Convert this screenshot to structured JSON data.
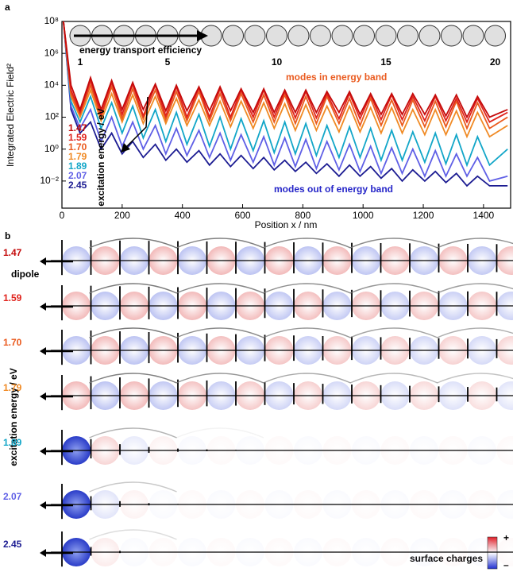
{
  "chart_data": {
    "type": "line",
    "panel_label": "a",
    "y_label": "Integrated Electric Field²",
    "x_label": "Position x / nm",
    "log_y": true,
    "xlim": [
      0,
      1490
    ],
    "ylim": [
      0.0002,
      100000000
    ],
    "xticks": [
      0,
      200,
      400,
      600,
      800,
      1000,
      1200,
      1400
    ],
    "yticks": [
      {
        "value": 0.01,
        "label": "10⁻²"
      },
      {
        "value": 1,
        "label": "10⁰"
      },
      {
        "value": 100,
        "label": "10²"
      },
      {
        "value": 10000,
        "label": "10⁴"
      },
      {
        "value": 1000000,
        "label": "10⁶"
      },
      {
        "value": 100000000,
        "label": "10⁸"
      }
    ],
    "legend_title": "excitation energy / eV",
    "annotations": {
      "transport": "energy transport efficiency",
      "in_band": "modes in energy band",
      "out_band": "modes out of energy band"
    },
    "particle_numbers": [
      1,
      5,
      10,
      15,
      20
    ],
    "x": [
      5,
      30,
      60,
      95,
      130,
      165,
      200,
      235,
      270,
      310,
      345,
      380,
      415,
      455,
      490,
      525,
      560,
      595,
      635,
      670,
      705,
      740,
      775,
      810,
      845,
      880,
      920,
      955,
      990,
      1025,
      1060,
      1095,
      1130,
      1165,
      1205,
      1240,
      1275,
      1310,
      1345,
      1380,
      1420,
      1480
    ],
    "series": [
      {
        "name": "1.47",
        "color": "#c40a0a",
        "values": [
          100000000,
          10000,
          300,
          30000,
          300,
          20000,
          300,
          15000,
          300,
          12000,
          250,
          10000,
          250,
          8000,
          250,
          8000,
          250,
          6000,
          200,
          6000,
          200,
          5000,
          200,
          5000,
          200,
          4000,
          200,
          4000,
          150,
          3000,
          150,
          3000,
          150,
          3000,
          150,
          2500,
          120,
          2500,
          100,
          2000,
          100,
          300
        ]
      },
      {
        "name": "1.59",
        "color": "#e0231c",
        "values": [
          100000000,
          5000,
          200,
          20000,
          150,
          15000,
          150,
          12000,
          120,
          10000,
          120,
          8000,
          100,
          7000,
          100,
          6000,
          100,
          5000,
          100,
          5000,
          100,
          4000,
          90,
          4000,
          90,
          3000,
          80,
          3000,
          80,
          2500,
          70,
          2500,
          70,
          2000,
          60,
          2000,
          60,
          1500,
          50,
          1500,
          50,
          200
        ]
      },
      {
        "name": "1.70",
        "color": "#ea5a1e",
        "values": [
          100000000,
          3000,
          150,
          10000,
          100,
          8000,
          80,
          6000,
          80,
          5000,
          70,
          4000,
          60,
          4000,
          60,
          3000,
          60,
          3000,
          50,
          2500,
          50,
          2500,
          40,
          2000,
          40,
          2000,
          40,
          1500,
          30,
          1500,
          30,
          1200,
          30,
          1200,
          25,
          1000,
          25,
          1000,
          20,
          800,
          20,
          100
        ]
      },
      {
        "name": "1.79",
        "color": "#f08a24",
        "values": [
          100000000,
          2000,
          100,
          5000,
          60,
          3000,
          50,
          2500,
          40,
          2000,
          40,
          1500,
          30,
          1200,
          30,
          1000,
          25,
          1000,
          20,
          800,
          20,
          700,
          15,
          600,
          15,
          500,
          12,
          500,
          12,
          400,
          10,
          400,
          10,
          300,
          8,
          300,
          8,
          250,
          6,
          200,
          6,
          30
        ]
      },
      {
        "name": "1.89",
        "color": "#12a6c8",
        "values": [
          100000000,
          1000,
          50,
          2000,
          20,
          800,
          10,
          500,
          5,
          300,
          3,
          200,
          2,
          150,
          1.5,
          100,
          1,
          80,
          0.8,
          60,
          0.6,
          50,
          0.5,
          40,
          0.4,
          30,
          0.3,
          25,
          0.3,
          20,
          0.2,
          15,
          0.2,
          12,
          0.15,
          10,
          0.12,
          8,
          0.1,
          6,
          0.1,
          1
        ]
      },
      {
        "name": "2.07",
        "color": "#5f5fe6",
        "values": [
          100000000,
          500,
          20,
          300,
          3,
          100,
          1.5,
          50,
          1,
          30,
          0.5,
          20,
          0.4,
          15,
          0.3,
          10,
          0.2,
          8,
          0.15,
          6,
          0.1,
          5,
          0.08,
          4,
          0.06,
          3,
          0.05,
          2,
          0.04,
          1.5,
          0.03,
          1.2,
          0.03,
          1,
          0.02,
          0.8,
          0.02,
          0.5,
          0.02,
          0.3,
          0.01,
          0.02
        ]
      },
      {
        "name": "2.45",
        "color": "#1c1c92",
        "values": [
          100000000,
          300,
          10,
          50,
          1,
          10,
          0.5,
          3,
          0.3,
          2,
          0.2,
          1,
          0.15,
          0.8,
          0.1,
          0.5,
          0.08,
          0.4,
          0.06,
          0.3,
          0.05,
          0.2,
          0.04,
          0.15,
          0.03,
          0.12,
          0.02,
          0.1,
          0.02,
          0.08,
          0.015,
          0.06,
          0.01,
          0.05,
          0.01,
          0.04,
          0.008,
          0.03,
          0.005,
          0.02,
          0.005,
          0.005
        ]
      }
    ]
  },
  "panel_b": {
    "label": "b",
    "dipole": "dipole",
    "axis_label": "excitation energy / eV",
    "colorbar_label": "surface charges",
    "plus": "+",
    "minus": "–"
  }
}
